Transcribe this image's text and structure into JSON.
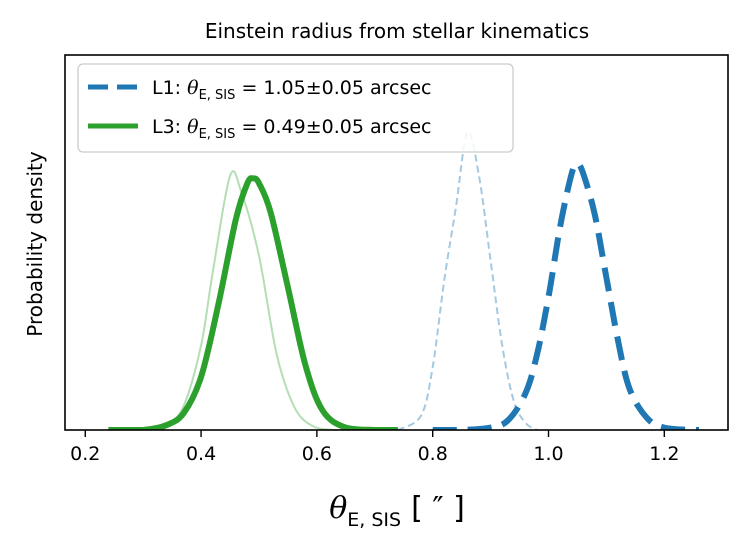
{
  "chart_data": {
    "type": "line",
    "title": "Einstein radius from stellar kinematics",
    "ylabel": "Probability density",
    "xlabel": {
      "symbol": "θ",
      "subscript": "E, SIS",
      "unit": "[ ″ ]"
    },
    "xlim": [
      0.165,
      1.31
    ],
    "ylim": [
      0,
      1.55
    ],
    "xticks": [
      0.2,
      0.4,
      0.6,
      0.8,
      1.0,
      1.2
    ],
    "xtick_labels": [
      "0.2",
      "0.4",
      "0.6",
      "0.8",
      "1.0",
      "1.2"
    ],
    "yticks_visible": false,
    "grid": false,
    "legend_position": "top-left",
    "series": [
      {
        "name": "L1",
        "legend": {
          "prefix": "L1: ",
          "symbol": "θ",
          "subscript": "E, SIS",
          "value": " = 1.05±0.05 arcsec"
        },
        "color": "#1f77b4",
        "style": "dashed",
        "width": "thick",
        "opacity": 1,
        "x": [
          0.8,
          0.85,
          0.9,
          0.93,
          0.96,
          0.98,
          1.0,
          1.02,
          1.04,
          1.05,
          1.06,
          1.08,
          1.1,
          1.12,
          1.14,
          1.17,
          1.2,
          1.25,
          1.26
        ],
        "y": [
          0.0,
          0.0,
          0.01,
          0.04,
          0.15,
          0.31,
          0.55,
          0.84,
          1.06,
          1.1,
          1.06,
          0.89,
          0.63,
          0.37,
          0.17,
          0.05,
          0.01,
          0.0,
          0.0
        ]
      },
      {
        "name": "L3",
        "legend": {
          "prefix": "L3: ",
          "symbol": "θ",
          "subscript": "E, SIS",
          "value": " = 0.49±0.05 arcsec"
        },
        "color": "#2ca02c",
        "style": "solid",
        "width": "thick",
        "opacity": 1,
        "x": [
          0.24,
          0.3,
          0.34,
          0.37,
          0.4,
          0.43,
          0.46,
          0.48,
          0.49,
          0.5,
          0.52,
          0.55,
          0.58,
          0.61,
          0.65,
          0.7,
          0.74
        ],
        "y": [
          0.0,
          0.0,
          0.02,
          0.07,
          0.22,
          0.52,
          0.87,
          1.02,
          1.04,
          1.02,
          0.9,
          0.59,
          0.27,
          0.08,
          0.01,
          0.0,
          0.0
        ]
      },
      {
        "color": "#1f77b4",
        "style": "dashed",
        "width": "thin",
        "opacity": 0.4,
        "x": [
          0.74,
          0.78,
          0.8,
          0.82,
          0.84,
          0.86,
          0.88,
          0.9,
          0.92,
          0.94,
          0.96,
          0.98
        ],
        "y": [
          0.0,
          0.06,
          0.26,
          0.62,
          0.92,
          1.23,
          1.05,
          0.7,
          0.35,
          0.12,
          0.03,
          0.0
        ]
      },
      {
        "color": "#2ca02c",
        "style": "solid",
        "width": "thin",
        "opacity": 0.35,
        "x": [
          0.24,
          0.3,
          0.34,
          0.37,
          0.4,
          0.42,
          0.45,
          0.47,
          0.5,
          0.53,
          0.56,
          0.59,
          0.63,
          0.7
        ],
        "y": [
          0.0,
          0.0,
          0.02,
          0.1,
          0.35,
          0.65,
          1.05,
          0.98,
          0.72,
          0.32,
          0.1,
          0.02,
          0.0,
          0.0
        ]
      }
    ]
  }
}
